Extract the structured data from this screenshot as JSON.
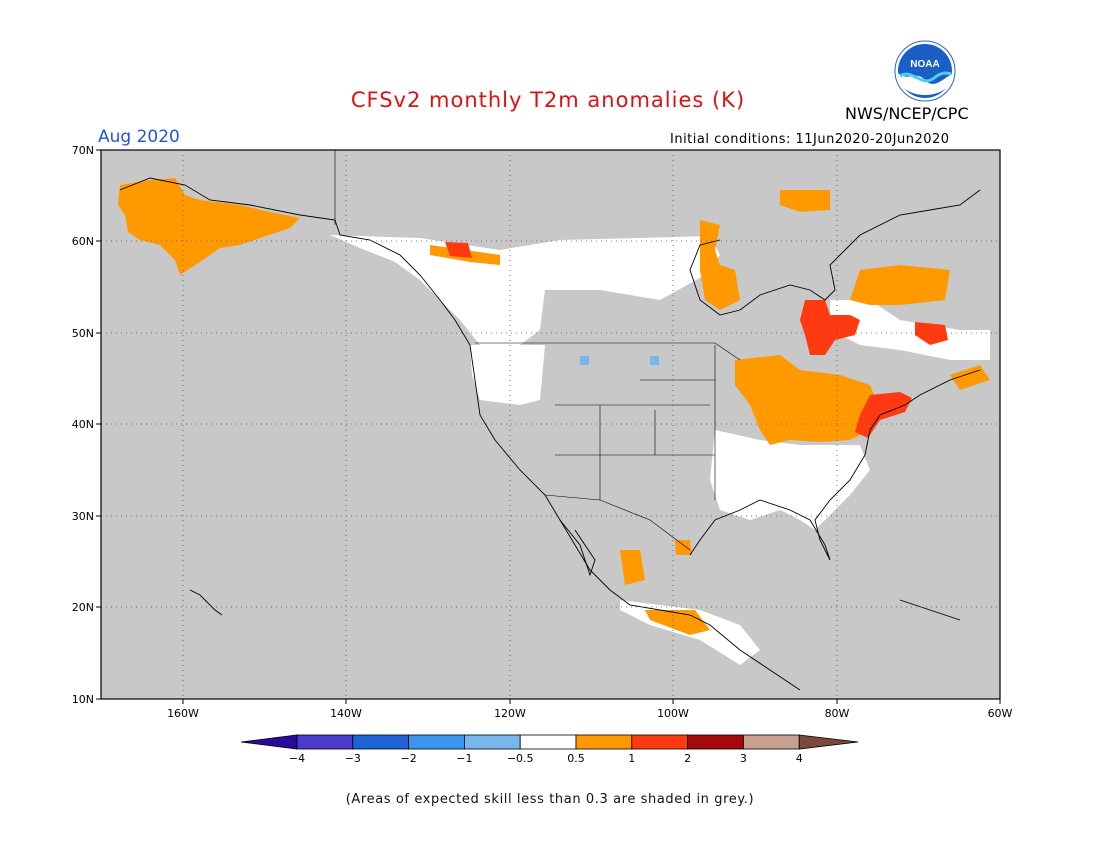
{
  "header": {
    "title": "CFSv2 monthly T2m anomalies (K)",
    "agency": "NWS/NCEP/CPC",
    "valid_month": "Aug 2020",
    "initial_conditions": "Initial conditions: 11Jun2020-20Jun2020"
  },
  "logo": {
    "text": "NOAA",
    "name": "noaa-logo"
  },
  "map": {
    "projection": "cylindrical lat-lon",
    "lon_range": [
      -170,
      -60
    ],
    "lat_range": [
      10,
      70
    ],
    "lat_labels": [
      "70N",
      "60N",
      "50N",
      "40N",
      "30N",
      "20N",
      "10N"
    ],
    "lon_labels": [
      "160W",
      "140W",
      "120W",
      "100W",
      "80W",
      "60W"
    ],
    "background_color": "#c8c8c8",
    "gridlines": "dotted"
  },
  "colorbar": {
    "labels": [
      "−4",
      "−3",
      "−2",
      "−1",
      "−0.5",
      "0.5",
      "1",
      "2",
      "3",
      "4"
    ],
    "colors": [
      "#2a0a9a",
      "#4a3ccc",
      "#1e64d6",
      "#3c96f0",
      "#78b6f0",
      "#ffffff",
      "#ff9900",
      "#ff3a10",
      "#a40a0a",
      "#c8a090",
      "#7a4a3a"
    ]
  },
  "footnote": "(Areas of expected skill less than 0.3 are shaded in grey.)",
  "anomaly_regions": [
    {
      "region": "Alaska interior",
      "category": "0.5 to 1",
      "color": "#ff9900"
    },
    {
      "region": "Great Lakes / Ohio Valley",
      "category": "0.5 to 1",
      "color": "#ff9900"
    },
    {
      "region": "Quebec",
      "category": "1 to 2",
      "color": "#ff3a10"
    },
    {
      "region": "US Northeast coast",
      "category": "1 to 2",
      "color": "#ff3a10"
    },
    {
      "region": "Canadian Prairies / northern Plains",
      "category": "-0.5 to 0.5",
      "color": "#ffffff"
    },
    {
      "region": "Southeast US",
      "category": "-0.5 to 0.5",
      "color": "#ffffff"
    },
    {
      "region": "Montana / North Dakota spots",
      "category": "-1 to -0.5",
      "color": "#78b6f0"
    }
  ]
}
